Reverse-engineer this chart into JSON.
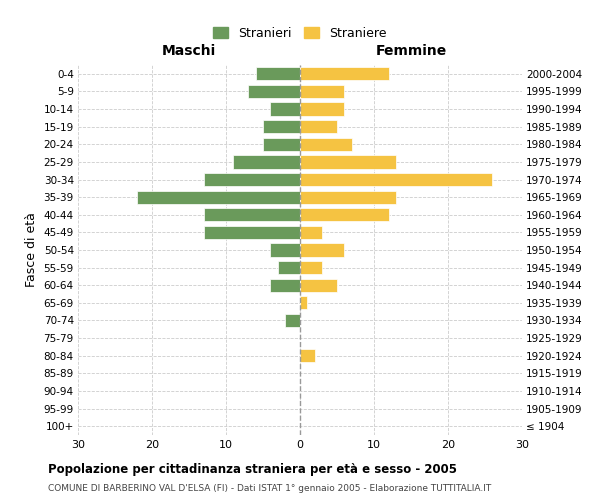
{
  "age_groups": [
    "100+",
    "95-99",
    "90-94",
    "85-89",
    "80-84",
    "75-79",
    "70-74",
    "65-69",
    "60-64",
    "55-59",
    "50-54",
    "45-49",
    "40-44",
    "35-39",
    "30-34",
    "25-29",
    "20-24",
    "15-19",
    "10-14",
    "5-9",
    "0-4"
  ],
  "birth_years": [
    "≤ 1904",
    "1905-1909",
    "1910-1914",
    "1915-1919",
    "1920-1924",
    "1925-1929",
    "1930-1934",
    "1935-1939",
    "1940-1944",
    "1945-1949",
    "1950-1954",
    "1955-1959",
    "1960-1964",
    "1965-1969",
    "1970-1974",
    "1975-1979",
    "1980-1984",
    "1985-1989",
    "1990-1994",
    "1995-1999",
    "2000-2004"
  ],
  "maschi": [
    0,
    0,
    0,
    0,
    0,
    0,
    2,
    0,
    4,
    3,
    4,
    13,
    13,
    22,
    13,
    9,
    5,
    5,
    4,
    7,
    6
  ],
  "femmine": [
    0,
    0,
    0,
    0,
    2,
    0,
    0,
    1,
    5,
    3,
    6,
    3,
    12,
    13,
    26,
    13,
    7,
    5,
    6,
    6,
    12
  ],
  "color_maschi": "#6a9a5b",
  "color_femmine": "#f5c342",
  "title": "Popolazione per cittadinanza straniera per età e sesso - 2005",
  "subtitle": "COMUNE DI BARBERINO VAL D'ELSA (FI) - Dati ISTAT 1° gennaio 2005 - Elaborazione TUTTITALIA.IT",
  "xlabel_left": "Maschi",
  "xlabel_right": "Femmine",
  "ylabel_left": "Fasce di età",
  "legend_maschi": "Stranieri",
  "legend_femmine": "Straniere",
  "xlim": 30,
  "background_color": "#ffffff",
  "grid_color": "#cccccc"
}
